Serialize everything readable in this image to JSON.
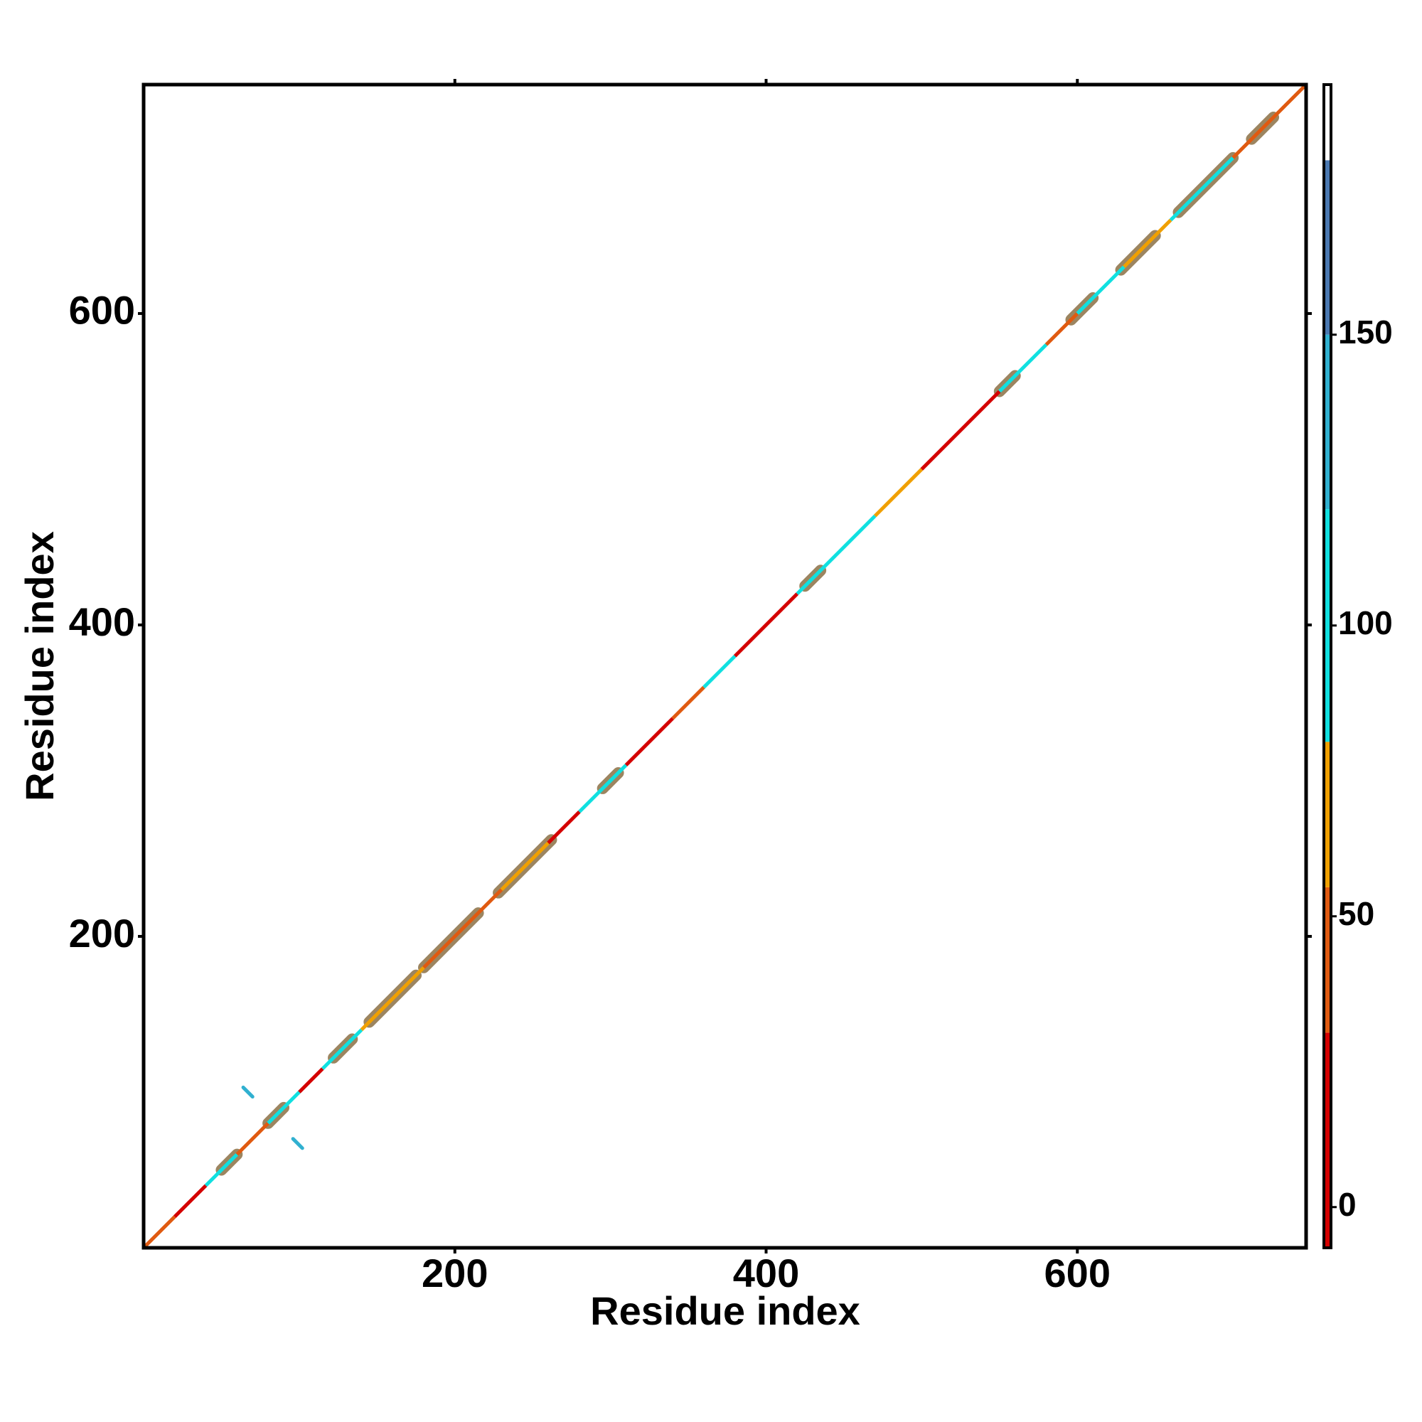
{
  "chart_data": {
    "type": "contact-map",
    "x_label": "Residue index",
    "y_label": "Residue index",
    "xlim": [
      0,
      747
    ],
    "ylim": [
      0,
      747
    ],
    "xticks": [
      200,
      400,
      600
    ],
    "yticks": [
      200,
      400,
      600
    ],
    "segments": [
      {
        "start": 0,
        "end": 20,
        "value": 45
      },
      {
        "start": 20,
        "end": 40,
        "value": 20
      },
      {
        "start": 40,
        "end": 60,
        "value": 100
      },
      {
        "start": 60,
        "end": 80,
        "value": 45
      },
      {
        "start": 80,
        "end": 100,
        "value": 100
      },
      {
        "start": 100,
        "end": 115,
        "value": 20
      },
      {
        "start": 115,
        "end": 140,
        "value": 100
      },
      {
        "start": 140,
        "end": 180,
        "value": 70
      },
      {
        "start": 180,
        "end": 230,
        "value": 45
      },
      {
        "start": 230,
        "end": 260,
        "value": 70
      },
      {
        "start": 260,
        "end": 280,
        "value": 20
      },
      {
        "start": 280,
        "end": 310,
        "value": 100
      },
      {
        "start": 310,
        "end": 340,
        "value": 20
      },
      {
        "start": 340,
        "end": 360,
        "value": 45
      },
      {
        "start": 360,
        "end": 380,
        "value": 100
      },
      {
        "start": 380,
        "end": 420,
        "value": 20
      },
      {
        "start": 420,
        "end": 470,
        "value": 100
      },
      {
        "start": 470,
        "end": 500,
        "value": 70
      },
      {
        "start": 500,
        "end": 550,
        "value": 20
      },
      {
        "start": 550,
        "end": 580,
        "value": 100
      },
      {
        "start": 580,
        "end": 600,
        "value": 45
      },
      {
        "start": 600,
        "end": 630,
        "value": 100
      },
      {
        "start": 630,
        "end": 660,
        "value": 70
      },
      {
        "start": 660,
        "end": 700,
        "value": 100
      },
      {
        "start": 700,
        "end": 747,
        "value": 45
      }
    ],
    "helices": {
      "color": "#9c8560",
      "ranges": [
        {
          "start": 50,
          "end": 60
        },
        {
          "start": 80,
          "end": 90
        },
        {
          "start": 122,
          "end": 134
        },
        {
          "start": 145,
          "end": 175
        },
        {
          "start": 180,
          "end": 215
        },
        {
          "start": 228,
          "end": 262
        },
        {
          "start": 295,
          "end": 305
        },
        {
          "start": 425,
          "end": 435
        },
        {
          "start": 550,
          "end": 560
        },
        {
          "start": 596,
          "end": 610
        },
        {
          "start": 628,
          "end": 650
        },
        {
          "start": 665,
          "end": 700
        },
        {
          "start": 712,
          "end": 726
        }
      ]
    },
    "contacts": [
      {
        "x": [
          64,
          70
        ],
        "y": [
          103,
          97
        ],
        "value": 140
      },
      {
        "x": [
          96,
          102
        ],
        "y": [
          70,
          64
        ],
        "value": 140
      }
    ],
    "colorbar": {
      "lim": [
        -7,
        193
      ],
      "ticks": [
        0,
        50,
        100,
        150
      ],
      "bands": [
        {
          "from": -7,
          "to": 30,
          "color": "#d40000"
        },
        {
          "from": 30,
          "to": 55,
          "color": "#e05a10"
        },
        {
          "from": 55,
          "to": 80,
          "color": "#f0a000"
        },
        {
          "from": 80,
          "to": 120,
          "color": "#10e0e0"
        },
        {
          "from": 120,
          "to": 150,
          "color": "#30b0d0"
        },
        {
          "from": 150,
          "to": 180,
          "color": "#4a78b0"
        },
        {
          "from": 180,
          "to": 193,
          "color": "#ffffff"
        }
      ]
    }
  }
}
